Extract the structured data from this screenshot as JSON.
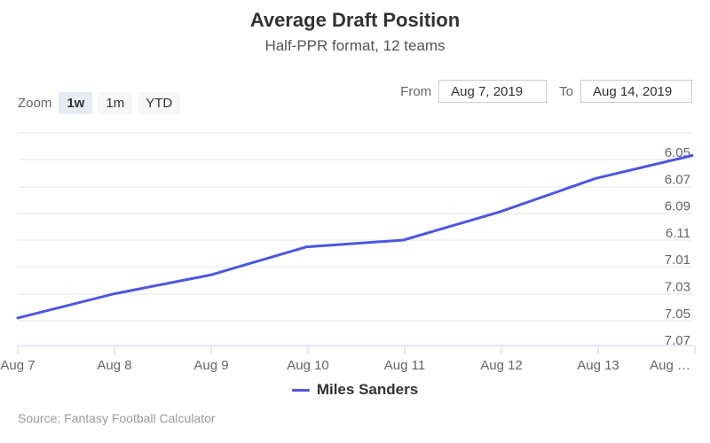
{
  "header": {
    "title": "Average Draft Position",
    "subtitle": "Half-PPR format, 12 teams"
  },
  "zoom": {
    "label": "Zoom",
    "buttons": [
      "1w",
      "1m",
      "YTD"
    ],
    "active": "1w"
  },
  "range": {
    "from_label": "From",
    "from_value": "Aug 7, 2019",
    "to_label": "To",
    "to_value": "Aug 14, 2019"
  },
  "chart_data": {
    "type": "line",
    "x": [
      "Aug 7",
      "Aug 8",
      "Aug 9",
      "Aug 10",
      "Aug 11",
      "Aug 12",
      "Aug 13",
      "Aug …"
    ],
    "y_axis": {
      "ticks": [
        "6.05",
        "6.07",
        "6.09",
        "6.11",
        "7.01",
        "7.03",
        "7.05",
        "7.07"
      ],
      "position": "right",
      "reversed": true
    },
    "series": [
      {
        "name": "Miles Sanders",
        "color": "#4b57e0",
        "values": [
          7.054,
          7.036,
          7.022,
          7.001,
          6.116,
          6.095,
          6.07,
          6.053
        ]
      }
    ],
    "grid": true,
    "legend_position": "bottom-center"
  },
  "legend": {
    "series_name": "Miles Sanders"
  },
  "source": "Source: Fantasy Football Calculator"
}
